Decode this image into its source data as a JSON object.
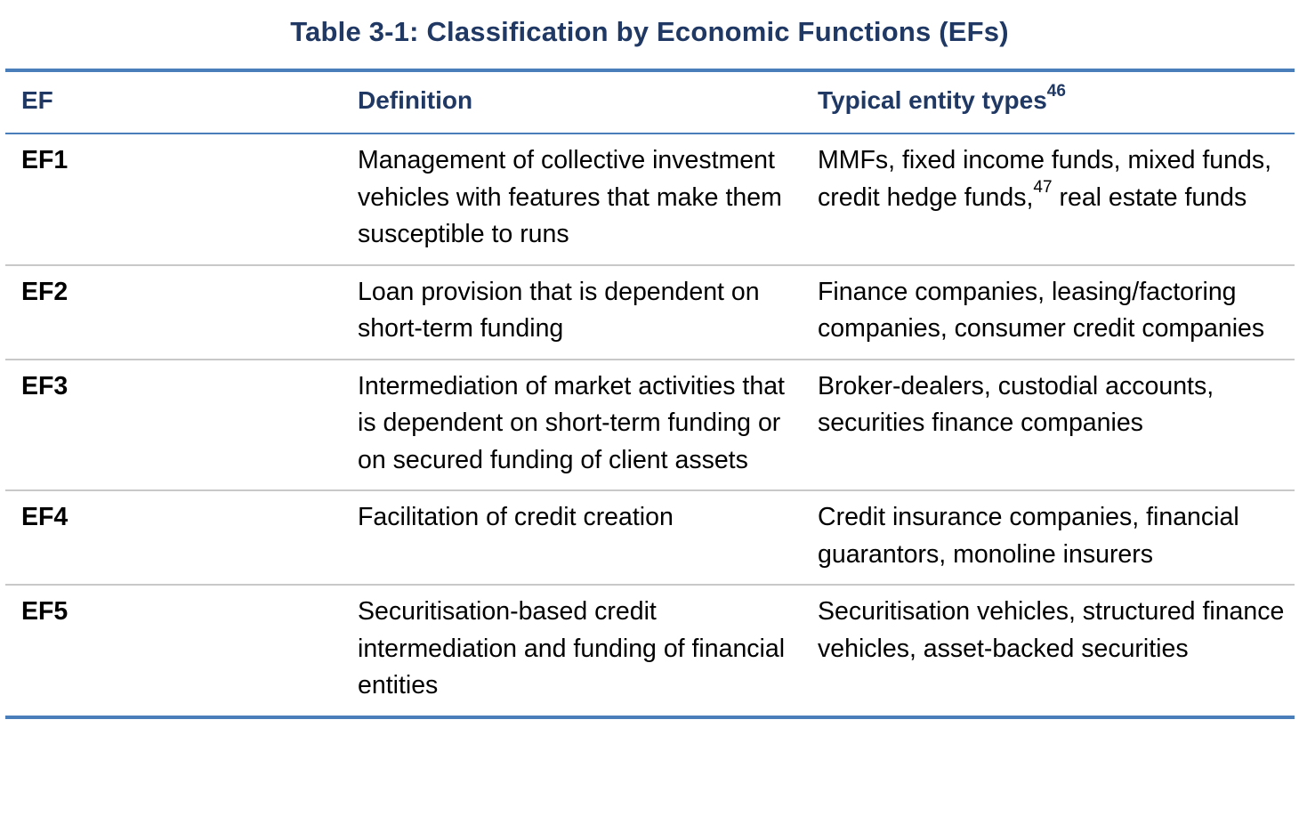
{
  "caption": "Table 3-1: Classification by Economic Functions (EFs)",
  "columns": {
    "ef": "EF",
    "definition": "Definition",
    "types": "Typical entity types",
    "types_footnote": "46"
  },
  "rows": [
    {
      "ef": "EF1",
      "definition": "Management of collective investment vehicles with features that make them susceptible to runs",
      "types_before": "MMFs, fixed income funds, mixed funds, credit hedge funds,",
      "types_footnote": "47",
      "types_after": " real estate funds"
    },
    {
      "ef": "EF2",
      "definition": "Loan provision that is dependent on short-term funding",
      "types_before": "Finance companies, leasing/factoring companies, consumer credit companies",
      "types_footnote": "",
      "types_after": ""
    },
    {
      "ef": "EF3",
      "definition": "Intermediation of market activities that is dependent on short-term funding or on secured funding of client assets",
      "types_before": "Broker-dealers, custodial accounts, securities finance companies",
      "types_footnote": "",
      "types_after": ""
    },
    {
      "ef": "EF4",
      "definition": "Facilitation of credit creation",
      "types_before": "Credit insurance companies, financial guarantors, monoline insurers",
      "types_footnote": "",
      "types_after": ""
    },
    {
      "ef": "EF5",
      "definition": "Securitisation-based credit intermediation and funding of financial entities",
      "types_before": "Securitisation vehicles, structured finance vehicles, asset-backed securities",
      "types_footnote": "",
      "types_after": ""
    }
  ],
  "colors": {
    "heading_text": "#1f3864",
    "rule_blue": "#4a7ebb",
    "rule_grey": "#c8c8c8"
  }
}
